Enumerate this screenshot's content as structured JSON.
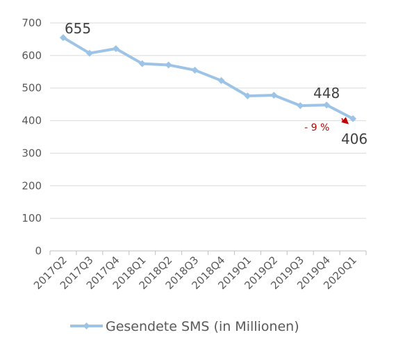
{
  "chart_data": {
    "type": "line",
    "categories": [
      "2017Q2",
      "2017Q3",
      "2017Q4",
      "2018Q1",
      "2018Q2",
      "2018Q3",
      "2018Q4",
      "2019Q1",
      "2019Q2",
      "2019Q3",
      "2019Q4",
      "2020Q1"
    ],
    "series": [
      {
        "name": "Gesendete SMS (in Millionen)",
        "values": [
          655,
          607,
          621,
          575,
          571,
          555,
          523,
          476,
          478,
          446,
          448,
          406
        ],
        "color": "#9dc3e6"
      }
    ],
    "ylim": [
      0,
      700
    ],
    "yticks": [
      0,
      100,
      200,
      300,
      400,
      500,
      600,
      700
    ],
    "grid": true,
    "legend": "bottom",
    "annotations": {
      "first_value": "655",
      "prev_value": "448",
      "last_value": "406",
      "change_label": "- 9 %",
      "change_color": "#c00000"
    }
  }
}
